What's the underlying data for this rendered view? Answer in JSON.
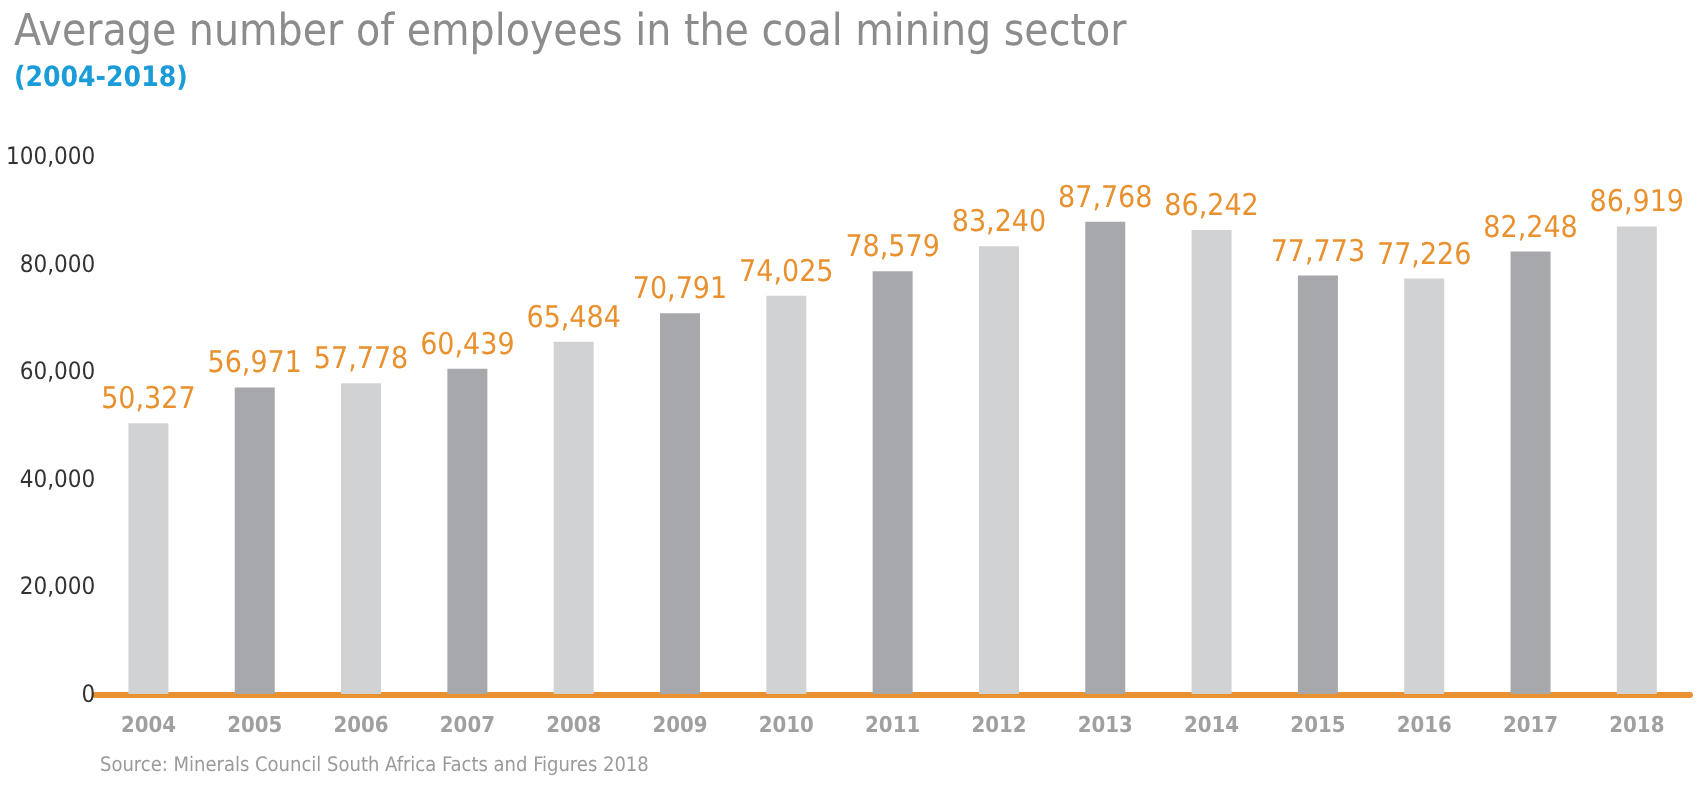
{
  "chart_data": {
    "type": "bar",
    "title": "Average number of employees in the coal mining sector",
    "subtitle": "(2004-2018)",
    "categories": [
      "2004",
      "2005",
      "2006",
      "2007",
      "2008",
      "2009",
      "2010",
      "2011",
      "2012",
      "2013",
      "2014",
      "2015",
      "2016",
      "2017",
      "2018"
    ],
    "values": [
      50327,
      56971,
      57778,
      60439,
      65484,
      70791,
      74025,
      78579,
      83240,
      87768,
      86242,
      77773,
      77226,
      82248,
      86919
    ],
    "value_labels": [
      "50,327",
      "56,971",
      "57,778",
      "60,439",
      "65,484",
      "70,791",
      "74,025",
      "78,579",
      "83,240",
      "87,768",
      "86,242",
      "77,773",
      "77,226",
      "82,248",
      "86,919"
    ],
    "colors": [
      "#d1d2d4",
      "#a7a8ab",
      "#d1d2d4",
      "#a7a8ab",
      "#d1d2d4",
      "#a7a8ab",
      "#d1d2d4",
      "#a7a8ab",
      "#d1d2d4",
      "#a7a8ab",
      "#d1d2d4",
      "#a7a8ab",
      "#d1d2d4",
      "#a7a8ab",
      "#d1d2d4"
    ],
    "ylim": [
      0,
      100000
    ],
    "yticks": [
      {
        "value": 0,
        "label": "0"
      },
      {
        "value": 20000,
        "label": "20,000"
      },
      {
        "value": 40000,
        "label": "40,000"
      },
      {
        "value": 60000,
        "label": "60,000"
      },
      {
        "value": 80000,
        "label": "80,000"
      },
      {
        "value": 100000,
        "label": "100,000"
      }
    ],
    "annotations": [
      "Source: Minerals Council South Africa Facts and Figures 2018"
    ],
    "grid": false
  }
}
